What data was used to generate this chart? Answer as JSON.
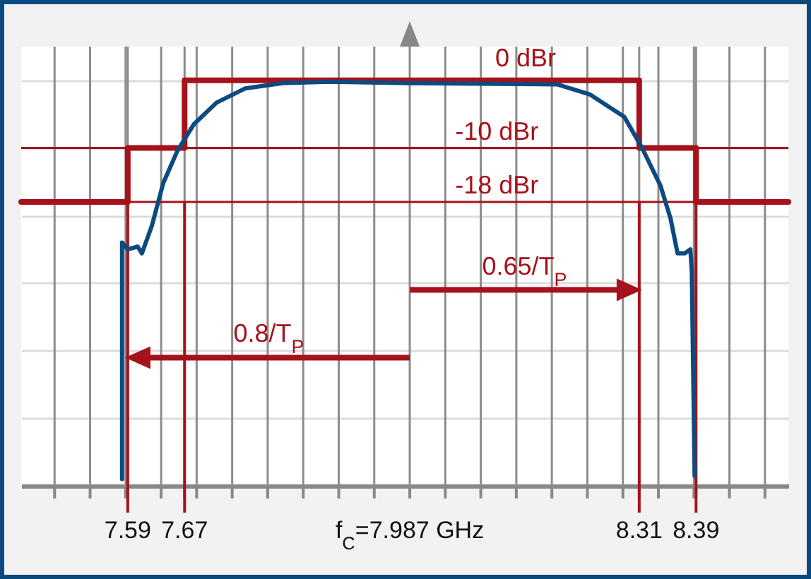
{
  "chart_data": {
    "type": "line",
    "xlim": [
      7.44,
      8.52
    ],
    "ylim": [
      -60,
      5
    ],
    "xticks": [
      {
        "value": 7.487,
        "label": null
      },
      {
        "value": 7.537,
        "label": null
      },
      {
        "value": 7.587,
        "label": null
      },
      7.59,
      {
        "value": 7.637,
        "label": null
      },
      7.67,
      {
        "value": 7.687,
        "label": null
      },
      {
        "value": 7.737,
        "label": null
      },
      {
        "value": 7.787,
        "label": null
      },
      {
        "value": 7.837,
        "label": null
      },
      {
        "value": 7.887,
        "label": null
      },
      {
        "value": 7.937,
        "label": null
      },
      {
        "value": 7.987,
        "label": "f$_{C}$=7.987 GHz"
      },
      {
        "value": 8.037,
        "label": null
      },
      {
        "value": 8.087,
        "label": null
      },
      {
        "value": 8.137,
        "label": null
      },
      {
        "value": 8.187,
        "label": null
      },
      {
        "value": 8.237,
        "label": null
      },
      {
        "value": 8.287,
        "label": null
      },
      8.31,
      {
        "value": 8.337,
        "label": null
      },
      8.39,
      {
        "value": 8.387,
        "label": null
      },
      {
        "value": 8.437,
        "label": null
      },
      {
        "value": 8.487,
        "label": null
      }
    ],
    "yticks": [
      -50,
      -40,
      -30,
      -20,
      -10,
      0
    ],
    "tick_labels": "x",
    "grid": true,
    "series": [
      {
        "type": "step",
        "color": "#a6121a",
        "x": [
          7.44,
          7.59,
          7.67,
          8.31,
          8.39,
          8.52
        ],
        "values": [
          -18,
          -10,
          0,
          -10,
          -18,
          -18
        ]
      },
      {
        "type": "line",
        "color": "#0d4a80",
        "x": [
          7.582,
          7.582,
          7.59,
          7.604,
          7.61,
          7.624,
          7.64,
          7.66,
          7.683,
          7.715,
          7.755,
          7.808,
          7.874,
          7.987,
          8.195,
          8.241,
          8.289,
          8.314,
          8.34,
          8.354,
          8.364,
          8.374,
          8.382,
          8.384,
          8.388
        ],
        "values": [
          -59,
          -24,
          -25,
          -24.6,
          -25.6,
          -21.5,
          -15.2,
          -10.4,
          -6.5,
          -3.3,
          -1.2,
          -0.4,
          -0.2,
          -0.4,
          -0.6,
          -2.1,
          -5.4,
          -10,
          -15.6,
          -20.4,
          -25.6,
          -25.6,
          -25,
          -28.3,
          -58.5
        ]
      }
    ],
    "ref_lines": [
      {
        "axis": "y",
        "value": -10,
        "label": "-10 dBr",
        "color": "#a6121a"
      },
      {
        "axis": "y",
        "value": -18,
        "label": "-18 dBr",
        "color": "#a6121a"
      }
    ],
    "annotations": [
      {
        "text": "0 dBr",
        "x": 8.15,
        "y": 0
      },
      "0.65/T$_{P}$",
      "0.8/T$_{P}$"
    ]
  }
}
